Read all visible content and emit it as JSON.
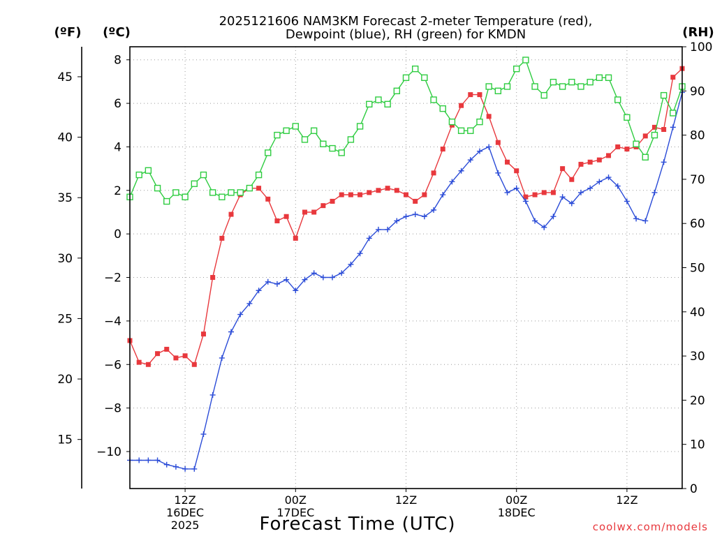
{
  "chart_data": {
    "type": "line",
    "title_line1": "2025121606 NAM3KM Forecast 2-meter Temperature (red),",
    "title_line2": "Dewpoint (blue), RH (green) for KMDN",
    "xlabel": "Forecast Time (UTC)",
    "credit": "coolwx.com/models",
    "unit_f": "(ºF)",
    "unit_c": "(ºC)",
    "unit_rh": "(RH)",
    "x_range_hours": [
      6,
      66
    ],
    "x_ticks": [
      {
        "hour": 12,
        "lines": [
          "12Z",
          "16DEC",
          "2025"
        ]
      },
      {
        "hour": 24,
        "lines": [
          "00Z",
          "17DEC"
        ]
      },
      {
        "hour": 36,
        "lines": [
          "12Z"
        ]
      },
      {
        "hour": 48,
        "lines": [
          "00Z",
          "18DEC"
        ]
      },
      {
        "hour": 60,
        "lines": [
          "12Z"
        ]
      }
    ],
    "celsius_axis": {
      "range": [
        -11.7,
        8.6
      ],
      "ticks": [
        -10,
        -8,
        -6,
        -4,
        -2,
        0,
        2,
        4,
        6,
        8
      ]
    },
    "fahrenheit_ticks": [
      15,
      20,
      25,
      30,
      35,
      40,
      45
    ],
    "rh_axis": {
      "range": [
        0,
        100
      ],
      "ticks": [
        0,
        10,
        20,
        30,
        40,
        50,
        60,
        70,
        80,
        90,
        100
      ]
    },
    "series": [
      {
        "name": "Temperature",
        "unit": "°C",
        "color": "#e8383d",
        "marker": "filled-square",
        "hours": [
          6,
          7,
          8,
          9,
          10,
          11,
          12,
          13,
          14,
          15,
          16,
          17,
          18,
          19,
          20,
          21,
          22,
          23,
          24,
          25,
          26,
          27,
          28,
          29,
          30,
          31,
          32,
          33,
          34,
          35,
          36,
          37,
          38,
          39,
          40,
          41,
          42,
          43,
          44,
          45,
          46,
          47,
          48,
          49,
          50,
          51,
          52,
          53,
          54,
          55,
          56,
          57,
          58,
          59,
          60,
          61,
          62,
          63,
          64,
          65,
          66
        ],
        "values": [
          -4.9,
          -5.9,
          -6.0,
          -5.5,
          -5.3,
          -5.7,
          -5.6,
          -6.0,
          -4.6,
          -2.0,
          -0.2,
          0.9,
          1.8,
          2.1,
          2.1,
          1.6,
          0.6,
          0.8,
          -0.2,
          1.0,
          1.0,
          1.3,
          1.5,
          1.8,
          1.8,
          1.8,
          1.9,
          2.0,
          2.1,
          2.0,
          1.8,
          1.5,
          1.8,
          2.8,
          3.9,
          5.0,
          5.9,
          6.4,
          6.4,
          5.4,
          4.2,
          3.3,
          2.9,
          1.7,
          1.8,
          1.9,
          1.9,
          3.0,
          2.5,
          3.2,
          3.3,
          3.4,
          3.6,
          4.0,
          3.9,
          4.0,
          4.5,
          4.9,
          4.8,
          7.2,
          7.6
        ]
      },
      {
        "name": "Dewpoint",
        "unit": "°C",
        "color": "#2a4bd7",
        "marker": "plus",
        "hours": [
          6,
          7,
          8,
          9,
          10,
          11,
          12,
          13,
          14,
          15,
          16,
          17,
          18,
          19,
          20,
          21,
          22,
          23,
          24,
          25,
          26,
          27,
          28,
          29,
          30,
          31,
          32,
          33,
          34,
          35,
          36,
          37,
          38,
          39,
          40,
          41,
          42,
          43,
          44,
          45,
          46,
          47,
          48,
          49,
          50,
          51,
          52,
          53,
          54,
          55,
          56,
          57,
          58,
          59,
          60,
          61,
          62,
          63,
          64,
          65,
          66
        ],
        "values": [
          -10.4,
          -10.4,
          -10.4,
          -10.4,
          -10.6,
          -10.7,
          -10.8,
          -10.8,
          -9.2,
          -7.4,
          -5.7,
          -4.5,
          -3.7,
          -3.2,
          -2.6,
          -2.2,
          -2.3,
          -2.1,
          -2.6,
          -2.1,
          -1.8,
          -2.0,
          -2.0,
          -1.8,
          -1.4,
          -0.9,
          -0.2,
          0.2,
          0.2,
          0.6,
          0.8,
          0.9,
          0.8,
          1.1,
          1.8,
          2.4,
          2.9,
          3.4,
          3.8,
          4.0,
          2.8,
          1.9,
          2.1,
          1.5,
          0.6,
          0.3,
          0.8,
          1.7,
          1.4,
          1.9,
          2.1,
          2.4,
          2.6,
          2.2,
          1.5,
          0.7,
          0.6,
          1.9,
          3.3,
          4.9,
          6.5
        ]
      },
      {
        "name": "RH",
        "unit": "%",
        "color": "#2ecc40",
        "marker": "open-square",
        "hours": [
          6,
          7,
          8,
          9,
          10,
          11,
          12,
          13,
          14,
          15,
          16,
          17,
          18,
          19,
          20,
          21,
          22,
          23,
          24,
          25,
          26,
          27,
          28,
          29,
          30,
          31,
          32,
          33,
          34,
          35,
          36,
          37,
          38,
          39,
          40,
          41,
          42,
          43,
          44,
          45,
          46,
          47,
          48,
          49,
          50,
          51,
          52,
          53,
          54,
          55,
          56,
          57,
          58,
          59,
          60,
          61,
          62,
          63,
          64,
          65,
          66
        ],
        "values": [
          66,
          71,
          72,
          68,
          65,
          67,
          66,
          69,
          71,
          67,
          66,
          67,
          67,
          68,
          71,
          76,
          80,
          81,
          82,
          79,
          81,
          78,
          77,
          76,
          79,
          82,
          87,
          88,
          87,
          90,
          93,
          95,
          93,
          88,
          86,
          83,
          81,
          81,
          83,
          91,
          90,
          91,
          95,
          97,
          91,
          89,
          92,
          91,
          92,
          91,
          92,
          93,
          93,
          88,
          84,
          78,
          75,
          80,
          89,
          85,
          91
        ]
      }
    ]
  }
}
